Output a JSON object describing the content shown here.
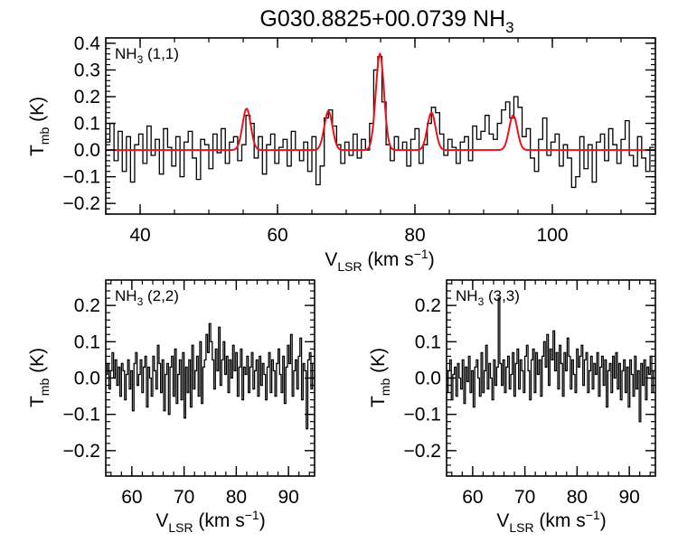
{
  "figure": {
    "title_main": "G030.8825+00.0739 NH",
    "title_sub": "3"
  },
  "axis_text": {
    "ylabel_main": "T",
    "ylabel_sub": "mb",
    "ylabel_unit": " (K)",
    "xlabel_main": "V",
    "xlabel_sub": "LSR",
    "xlabel_unit": " (km s",
    "xlabel_sup": "−1",
    "xlabel_close": ")"
  },
  "chart_data": [
    {
      "type": "line",
      "label_main": "NH",
      "label_sub": "3",
      "label_rest": " (1,1)",
      "xlim": [
        35,
        115
      ],
      "ylim": [
        -0.24,
        0.42
      ],
      "xticks": [
        40,
        60,
        80,
        100
      ],
      "yticks": [
        -0.2,
        -0.1,
        0.0,
        0.1,
        0.2,
        0.3,
        0.4
      ],
      "grid": false,
      "observed": {
        "style": "histogram",
        "color": "#000000",
        "x": [
          35.0,
          35.6,
          36.2,
          36.8,
          37.4,
          38.0,
          38.6,
          39.2,
          39.8,
          40.4,
          41.0,
          41.6,
          42.2,
          42.8,
          43.4,
          44.0,
          44.6,
          45.2,
          45.8,
          46.4,
          47.0,
          47.6,
          48.2,
          48.8,
          49.4,
          50.0,
          50.6,
          51.2,
          51.8,
          52.4,
          53.0,
          53.6,
          54.2,
          54.8,
          55.4,
          56.0,
          56.6,
          57.2,
          57.8,
          58.4,
          59.0,
          59.6,
          60.2,
          60.8,
          61.4,
          62.0,
          62.6,
          63.2,
          63.8,
          64.4,
          65.0,
          65.6,
          66.2,
          66.8,
          67.4,
          68.0,
          68.6,
          69.2,
          69.8,
          70.4,
          71.0,
          71.6,
          72.2,
          72.8,
          73.4,
          74.0,
          74.6,
          75.2,
          75.8,
          76.4,
          77.0,
          77.6,
          78.2,
          78.8,
          79.4,
          80.0,
          80.6,
          81.2,
          81.8,
          82.4,
          83.0,
          83.6,
          84.2,
          84.8,
          85.4,
          86.0,
          86.6,
          87.2,
          87.8,
          88.4,
          89.0,
          89.6,
          90.2,
          90.8,
          91.4,
          92.0,
          92.6,
          93.2,
          93.8,
          94.4,
          95.0,
          95.6,
          96.2,
          96.8,
          97.4,
          98.0,
          98.6,
          99.2,
          99.8,
          100.4,
          101.0,
          101.6,
          102.2,
          102.8,
          103.4,
          104.0,
          104.6,
          105.2,
          105.8,
          106.4,
          107.0,
          107.6,
          108.2,
          108.8,
          109.4,
          110.0,
          110.6,
          111.2,
          111.8,
          112.4,
          113.0,
          113.6,
          114.2
        ],
        "y": [
          0.03,
          0.1,
          -0.04,
          0.07,
          -0.08,
          0.05,
          -0.12,
          0.02,
          0.06,
          -0.05,
          0.09,
          -0.02,
          0.04,
          -0.09,
          0.08,
          0.01,
          -0.06,
          0.05,
          -0.1,
          0.03,
          0.07,
          -0.03,
          -0.11,
          0.04,
          0.02,
          -0.07,
          0.06,
          -0.01,
          0.08,
          -0.05,
          0.03,
          0.05,
          -0.04,
          0.02,
          0.13,
          0.1,
          -0.03,
          0.05,
          -0.09,
          0.02,
          0.06,
          -0.05,
          0.01,
          0.04,
          -0.06,
          0.07,
          0.0,
          -0.04,
          0.03,
          -0.08,
          0.05,
          -0.13,
          -0.06,
          0.12,
          0.15,
          0.09,
          0.02,
          -0.05,
          0.03,
          -0.02,
          0.06,
          -0.03,
          0.04,
          0.0,
          0.1,
          0.3,
          0.35,
          0.18,
          0.02,
          -0.04,
          0.05,
          0.0,
          0.03,
          -0.06,
          0.04,
          0.08,
          -0.05,
          0.02,
          0.1,
          0.16,
          0.14,
          0.06,
          -0.02,
          0.04,
          0.01,
          -0.05,
          0.03,
          0.05,
          -0.04,
          0.09,
          0.04,
          0.07,
          0.13,
          0.06,
          0.04,
          0.1,
          0.15,
          0.18,
          0.12,
          0.2,
          0.16,
          0.05,
          0.08,
          -0.03,
          -0.08,
          0.04,
          0.12,
          -0.02,
          0.03,
          0.06,
          -0.06,
          0.02,
          -0.03,
          -0.14,
          -0.1,
          0.05,
          -0.07,
          0.02,
          -0.12,
          0.03,
          0.06,
          -0.04,
          0.08,
          0.02,
          -0.05,
          0.04,
          0.11,
          -0.02,
          -0.06,
          0.05,
          -0.03,
          -0.08,
          0.01
        ]
      },
      "model": {
        "style": "line",
        "color": "#e8141b",
        "component_centers": [
          55.5,
          67.4,
          74.9,
          82.4,
          94.3
        ],
        "component_peaks": [
          0.155,
          0.145,
          0.36,
          0.14,
          0.13
        ],
        "component_sigma": 0.6
      }
    },
    {
      "type": "line",
      "label_main": "NH",
      "label_sub": "3",
      "label_rest": " (2,2)",
      "xlim": [
        55,
        95
      ],
      "ylim": [
        -0.27,
        0.27
      ],
      "xticks": [
        60,
        70,
        80,
        90
      ],
      "yticks": [
        -0.2,
        -0.1,
        0.0,
        0.1,
        0.2
      ],
      "grid": false,
      "observed": {
        "style": "histogram",
        "color": "#000000",
        "x": [
          55.0,
          55.3,
          55.6,
          55.9,
          56.2,
          56.5,
          56.8,
          57.1,
          57.4,
          57.7,
          58.0,
          58.3,
          58.6,
          58.9,
          59.2,
          59.5,
          59.8,
          60.1,
          60.4,
          60.7,
          61.0,
          61.3,
          61.6,
          61.9,
          62.2,
          62.5,
          62.8,
          63.1,
          63.4,
          63.7,
          64.0,
          64.3,
          64.6,
          64.9,
          65.2,
          65.5,
          65.8,
          66.1,
          66.4,
          66.7,
          67.0,
          67.3,
          67.6,
          67.9,
          68.2,
          68.5,
          68.8,
          69.1,
          69.4,
          69.7,
          70.0,
          70.3,
          70.6,
          70.9,
          71.2,
          71.5,
          71.8,
          72.1,
          72.4,
          72.7,
          73.0,
          73.3,
          73.6,
          73.9,
          74.2,
          74.5,
          74.8,
          75.1,
          75.4,
          75.7,
          76.0,
          76.3,
          76.6,
          76.9,
          77.2,
          77.5,
          77.8,
          78.1,
          78.4,
          78.7,
          79.0,
          79.3,
          79.6,
          79.9,
          80.2,
          80.5,
          80.8,
          81.1,
          81.4,
          81.7,
          82.0,
          82.3,
          82.6,
          82.9,
          83.2,
          83.5,
          83.8,
          84.1,
          84.4,
          84.7,
          85.0,
          85.3,
          85.6,
          85.9,
          86.2,
          86.5,
          86.8,
          87.1,
          87.4,
          87.7,
          88.0,
          88.3,
          88.6,
          88.9,
          89.2,
          89.5,
          89.8,
          90.1,
          90.4,
          90.7,
          91.0,
          91.3,
          91.6,
          91.9,
          92.2,
          92.5,
          92.8,
          93.1,
          93.4,
          93.7,
          94.0,
          94.3,
          94.6
        ],
        "y": [
          0.01,
          0.04,
          -0.03,
          0.02,
          0.07,
          0.0,
          0.05,
          -0.02,
          0.03,
          -0.05,
          0.04,
          0.02,
          -0.06,
          0.01,
          0.05,
          -0.03,
          0.02,
          -0.09,
          0.04,
          0.07,
          -0.02,
          0.01,
          0.05,
          -0.04,
          0.03,
          0.06,
          -0.08,
          0.03,
          0.0,
          -0.05,
          0.06,
          0.02,
          -0.03,
          0.09,
          0.04,
          -0.04,
          0.05,
          -0.09,
          0.01,
          0.04,
          -0.1,
          0.03,
          0.06,
          -0.05,
          0.08,
          -0.07,
          0.01,
          0.05,
          -0.06,
          0.07,
          -0.11,
          0.03,
          -0.04,
          0.05,
          -0.08,
          0.09,
          -0.03,
          0.02,
          0.06,
          -0.05,
          0.1,
          -0.07,
          0.03,
          0.05,
          0.12,
          0.07,
          0.15,
          0.1,
          0.05,
          -0.03,
          0.08,
          0.02,
          0.14,
          -0.02,
          0.05,
          0.1,
          0.01,
          0.06,
          -0.04,
          0.05,
          0.0,
          0.09,
          0.02,
          0.07,
          -0.05,
          0.03,
          0.08,
          -0.06,
          0.03,
          0.01,
          0.06,
          -0.04,
          0.03,
          0.07,
          -0.03,
          0.02,
          0.05,
          -0.05,
          0.06,
          -0.02,
          0.04,
          0.01,
          -0.06,
          0.03,
          0.07,
          -0.04,
          0.05,
          0.02,
          -0.05,
          0.04,
          0.08,
          0.01,
          -0.04,
          0.06,
          -0.07,
          0.03,
          0.09,
          0.04,
          0.12,
          -0.05,
          0.02,
          0.05,
          -0.03,
          0.06,
          0.11,
          -0.06,
          0.04,
          0.02,
          -0.14,
          0.05,
          0.07,
          -0.03,
          0.04
        ]
      }
    },
    {
      "type": "line",
      "label_main": "NH",
      "label_sub": "3",
      "label_rest": " (3,3)",
      "xlim": [
        55,
        95
      ],
      "ylim": [
        -0.27,
        0.27
      ],
      "xticks": [
        60,
        70,
        80,
        90
      ],
      "yticks": [
        -0.2,
        -0.1,
        0.0,
        0.1,
        0.2
      ],
      "grid": false,
      "observed": {
        "style": "histogram",
        "color": "#000000",
        "x": [
          55.0,
          55.3,
          55.6,
          55.9,
          56.2,
          56.5,
          56.8,
          57.1,
          57.4,
          57.7,
          58.0,
          58.3,
          58.6,
          58.9,
          59.2,
          59.5,
          59.8,
          60.1,
          60.4,
          60.7,
          61.0,
          61.3,
          61.6,
          61.9,
          62.2,
          62.5,
          62.8,
          63.1,
          63.4,
          63.7,
          64.0,
          64.3,
          64.6,
          64.9,
          65.2,
          65.5,
          65.8,
          66.1,
          66.4,
          66.7,
          67.0,
          67.3,
          67.6,
          67.9,
          68.2,
          68.5,
          68.8,
          69.1,
          69.4,
          69.7,
          70.0,
          70.3,
          70.6,
          70.9,
          71.2,
          71.5,
          71.8,
          72.1,
          72.4,
          72.7,
          73.0,
          73.3,
          73.6,
          73.9,
          74.2,
          74.5,
          74.8,
          75.1,
          75.4,
          75.7,
          76.0,
          76.3,
          76.6,
          76.9,
          77.2,
          77.5,
          77.8,
          78.1,
          78.4,
          78.7,
          79.0,
          79.3,
          79.6,
          79.9,
          80.2,
          80.5,
          80.8,
          81.1,
          81.4,
          81.7,
          82.0,
          82.3,
          82.6,
          82.9,
          83.2,
          83.5,
          83.8,
          84.1,
          84.4,
          84.7,
          85.0,
          85.3,
          85.6,
          85.9,
          86.2,
          86.5,
          86.8,
          87.1,
          87.4,
          87.7,
          88.0,
          88.3,
          88.6,
          88.9,
          89.2,
          89.5,
          89.8,
          90.1,
          90.4,
          90.7,
          91.0,
          91.3,
          91.6,
          91.9,
          92.2,
          92.5,
          92.8,
          93.1,
          93.4,
          93.7,
          94.0,
          94.3,
          94.6
        ],
        "y": [
          -0.04,
          0.02,
          0.05,
          -0.06,
          0.01,
          0.03,
          -0.05,
          0.04,
          0.0,
          -0.03,
          0.05,
          -0.07,
          0.03,
          -0.01,
          0.06,
          -0.04,
          0.02,
          -0.08,
          0.03,
          0.05,
          0.0,
          -0.05,
          0.07,
          -0.04,
          0.02,
          0.09,
          -0.03,
          0.04,
          0.0,
          -0.06,
          0.05,
          -0.02,
          0.03,
          0.22,
          0.04,
          -0.02,
          0.05,
          -0.04,
          0.03,
          0.06,
          -0.03,
          0.01,
          0.07,
          -0.05,
          0.04,
          0.08,
          -0.03,
          0.05,
          0.02,
          -0.04,
          0.06,
          0.09,
          0.02,
          -0.06,
          0.05,
          0.08,
          -0.04,
          0.07,
          0.01,
          0.05,
          -0.05,
          0.06,
          0.1,
          0.03,
          0.12,
          -0.02,
          0.08,
          0.05,
          0.13,
          0.02,
          0.07,
          -0.03,
          0.09,
          0.04,
          -0.05,
          0.07,
          0.02,
          0.11,
          0.06,
          -0.03,
          0.05,
          0.01,
          -0.04,
          0.08,
          0.03,
          0.06,
          0.09,
          -0.02,
          0.05,
          0.07,
          -0.04,
          0.02,
          0.06,
          -0.03,
          0.04,
          0.01,
          0.07,
          -0.05,
          0.03,
          0.06,
          -0.02,
          0.05,
          -0.08,
          0.02,
          0.04,
          -0.04,
          0.06,
          0.0,
          0.07,
          -0.03,
          0.04,
          -0.06,
          0.02,
          0.05,
          -0.04,
          0.03,
          -0.08,
          0.05,
          0.01,
          -0.05,
          0.06,
          -0.03,
          0.02,
          -0.12,
          0.04,
          -0.02,
          0.05,
          -0.06,
          0.03,
          0.01,
          0.06,
          -0.04,
          0.02
        ]
      }
    }
  ]
}
